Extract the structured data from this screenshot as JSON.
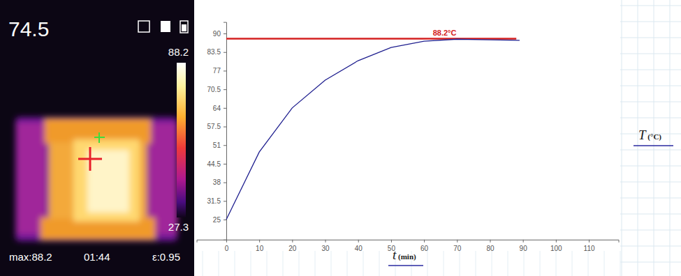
{
  "chart_data": {
    "type": "line",
    "x": [
      0,
      10,
      20,
      30,
      40,
      50,
      60,
      70,
      80,
      89
    ],
    "series": [
      {
        "color": "#1f1f8f",
        "values": [
          25,
          48.6,
          64,
          73.7,
          80.5,
          85.1,
          87.3,
          88,
          87.8,
          87.6
        ]
      }
    ],
    "xlim": [
      -9,
      119
    ],
    "xticks": [
      0,
      10,
      20,
      30,
      40,
      50,
      60,
      70,
      80,
      90,
      100,
      110
    ],
    "ylim": [
      18,
      94
    ],
    "yticks": [
      25,
      31.5,
      38,
      44.5,
      51,
      57.5,
      64,
      70.5,
      77,
      83.5,
      90
    ],
    "x_label": "t (min)",
    "y_label": "T (°C)",
    "grid": false,
    "reference_line": {
      "y": 88.2,
      "x": [
        0,
        88
      ],
      "label": "88.2°C"
    }
  },
  "thermal_image": {
    "spot_temperature": 74.5,
    "scale_max": 88.2,
    "scale_min": 27.3,
    "max_reading": "max:88.2",
    "time": "01:44",
    "emissivity": "ε:0.95"
  }
}
